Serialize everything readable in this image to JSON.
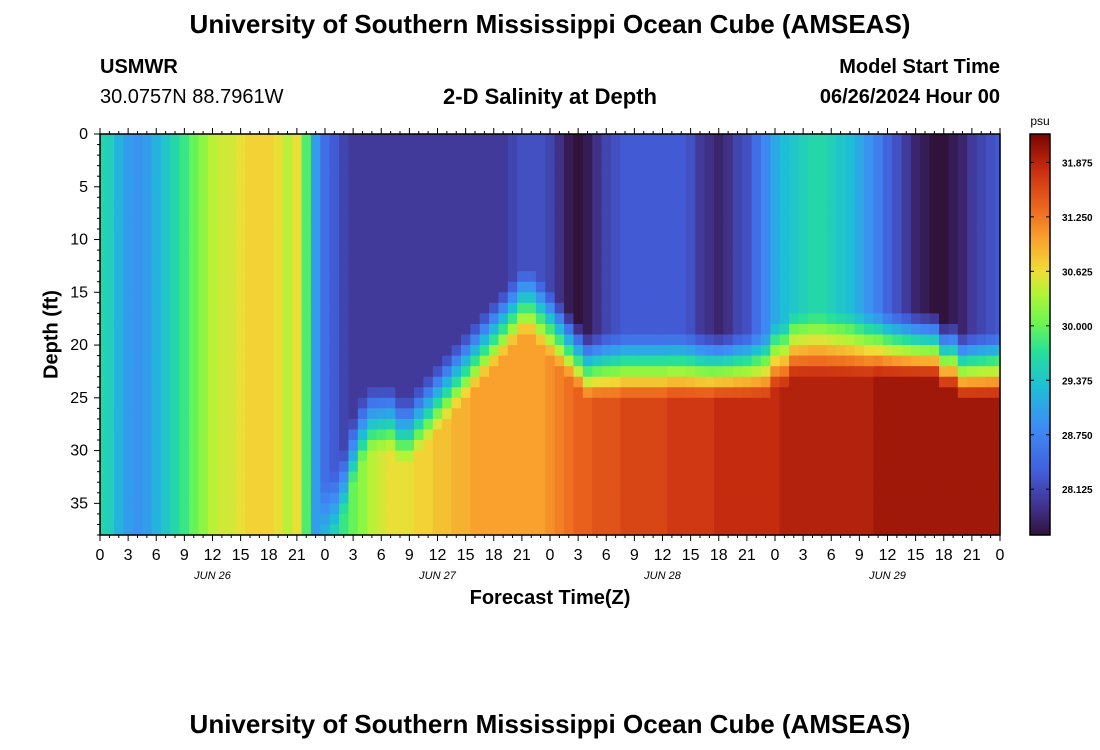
{
  "header": {
    "title": "University of Southern Mississippi Ocean Cube (AMSEAS)",
    "station_name": "USMWR",
    "station_coords": "30.0757N  88.7961W",
    "plot_title": "2-D Salinity at Depth",
    "model_label": "Model Start Time",
    "model_time": "06/26/2024 Hour 00"
  },
  "footer": {
    "title": "University of Southern Mississippi Ocean Cube (AMSEAS)"
  },
  "colors": {
    "background": "#ffffff",
    "text": "#000000"
  },
  "chart_data": {
    "type": "heatmap",
    "title": "2-D Salinity at Depth",
    "xlabel": "Forecast Time(Z)",
    "ylabel": "Depth (ft)",
    "xlim": [
      0,
      96
    ],
    "ylim": [
      0,
      38
    ],
    "y_inverted": true,
    "x_tick_hours": [
      0,
      3,
      6,
      9,
      12,
      15,
      18,
      21,
      24,
      27,
      30,
      33,
      36,
      39,
      42,
      45,
      48,
      51,
      54,
      57,
      60,
      63,
      66,
      69,
      72,
      75,
      78,
      81,
      84,
      87,
      90,
      93,
      96
    ],
    "x_tick_labels": [
      "0",
      "3",
      "6",
      "9",
      "12",
      "15",
      "18",
      "21",
      "0",
      "3",
      "6",
      "9",
      "12",
      "15",
      "18",
      "21",
      "0",
      "3",
      "6",
      "9",
      "12",
      "15",
      "18",
      "21",
      "0",
      "3",
      "6",
      "9",
      "12",
      "15",
      "18",
      "21",
      "0"
    ],
    "day_labels": [
      {
        "hour": 12,
        "label": "JUN 26"
      },
      {
        "hour": 36,
        "label": "JUN 27"
      },
      {
        "hour": 60,
        "label": "JUN 28"
      },
      {
        "hour": 84,
        "label": "JUN 29"
      }
    ],
    "y_ticks": [
      0,
      5,
      10,
      15,
      20,
      25,
      30,
      35
    ],
    "y_tick_labels": [
      "0",
      "5",
      "10",
      "15",
      "20",
      "25",
      "30",
      "35"
    ],
    "colorbar": {
      "unit": "psu",
      "min": 27.6,
      "max": 32.2,
      "ticks": [
        28.125,
        28.75,
        29.375,
        30.0,
        30.625,
        31.25,
        31.875
      ],
      "tick_labels": [
        "28.125",
        "28.750",
        "29.375",
        "30.000",
        "30.625",
        "31.250",
        "31.875"
      ]
    },
    "grid": {
      "time_step_hours": 1,
      "depth_step_ft": 1,
      "depth_count": 38
    },
    "surface_salinity_psu": [
      29.6,
      29.5,
      29.2,
      29.0,
      28.9,
      29.0,
      29.2,
      29.4,
      29.6,
      29.8,
      30.0,
      30.2,
      30.4,
      30.5,
      30.5,
      30.6,
      30.7,
      30.7,
      30.7,
      30.6,
      30.4,
      30.6,
      29.9,
      29.0,
      28.5,
      28.3,
      28.1,
      28.0,
      28.0,
      28.0,
      28.0,
      28.0,
      28.0,
      28.0,
      28.0,
      28.0,
      28.0,
      28.0,
      28.0,
      28.0,
      28.0,
      28.0,
      28.0,
      28.0,
      28.1,
      28.2,
      28.2,
      28.2,
      28.1,
      27.9,
      27.7,
      27.6,
      27.7,
      27.9,
      28.1,
      28.2,
      28.3,
      28.3,
      28.3,
      28.3,
      28.3,
      28.3,
      28.3,
      28.2,
      28.0,
      27.9,
      27.8,
      27.9,
      28.1,
      28.2,
      28.5,
      28.8,
      29.1,
      29.3,
      29.4,
      29.5,
      29.6,
      29.6,
      29.5,
      29.4,
      29.3,
      29.1,
      28.9,
      28.7,
      28.4,
      28.2,
      28.0,
      27.8,
      27.7,
      27.6,
      27.6,
      27.7,
      27.8,
      28.0,
      28.1,
      28.2,
      28.3
    ],
    "halocline_top_ft": [
      99,
      99,
      99,
      99,
      99,
      99,
      99,
      99,
      99,
      99,
      99,
      99,
      99,
      99,
      99,
      99,
      99,
      99,
      99,
      99,
      99,
      99,
      99,
      99,
      36,
      35,
      33,
      30,
      28,
      27,
      27,
      27,
      28,
      28,
      27,
      26,
      25,
      24,
      23,
      22,
      21,
      20,
      19,
      18,
      17,
      16,
      16,
      17,
      18,
      19,
      20,
      21,
      22,
      22,
      22,
      22,
      22,
      22,
      22,
      22,
      22,
      22,
      22,
      22,
      22,
      22,
      22,
      22,
      22,
      22,
      22,
      22,
      21,
      21,
      20,
      20,
      20,
      20,
      20,
      20,
      20,
      20,
      20,
      20,
      20,
      20,
      20,
      20,
      20,
      20,
      21,
      21,
      22,
      22,
      22,
      22,
      22
    ],
    "deep_salinity_psu": [
      29.6,
      29.5,
      29.2,
      29.0,
      28.9,
      29.0,
      29.2,
      29.4,
      29.6,
      29.8,
      30.0,
      30.2,
      30.4,
      30.5,
      30.5,
      30.6,
      30.7,
      30.7,
      30.7,
      30.6,
      30.4,
      30.6,
      29.9,
      29.0,
      29.4,
      29.6,
      29.8,
      30.0,
      30.2,
      30.4,
      30.5,
      30.6,
      30.6,
      30.6,
      30.7,
      30.7,
      30.8,
      30.8,
      30.9,
      30.9,
      31.0,
      31.0,
      31.0,
      31.0,
      31.0,
      31.0,
      31.0,
      31.0,
      31.1,
      31.2,
      31.3,
      31.4,
      31.4,
      31.5,
      31.5,
      31.5,
      31.6,
      31.6,
      31.6,
      31.6,
      31.6,
      31.7,
      31.7,
      31.7,
      31.7,
      31.7,
      31.8,
      31.8,
      31.8,
      31.8,
      31.8,
      31.8,
      31.8,
      31.9,
      31.9,
      31.9,
      31.9,
      31.9,
      31.9,
      31.9,
      31.9,
      31.9,
      31.9,
      32.0,
      32.0,
      32.0,
      32.0,
      32.0,
      32.0,
      32.0,
      32.0,
      32.0,
      32.0,
      32.0,
      32.0,
      32.0,
      32.0
    ]
  }
}
